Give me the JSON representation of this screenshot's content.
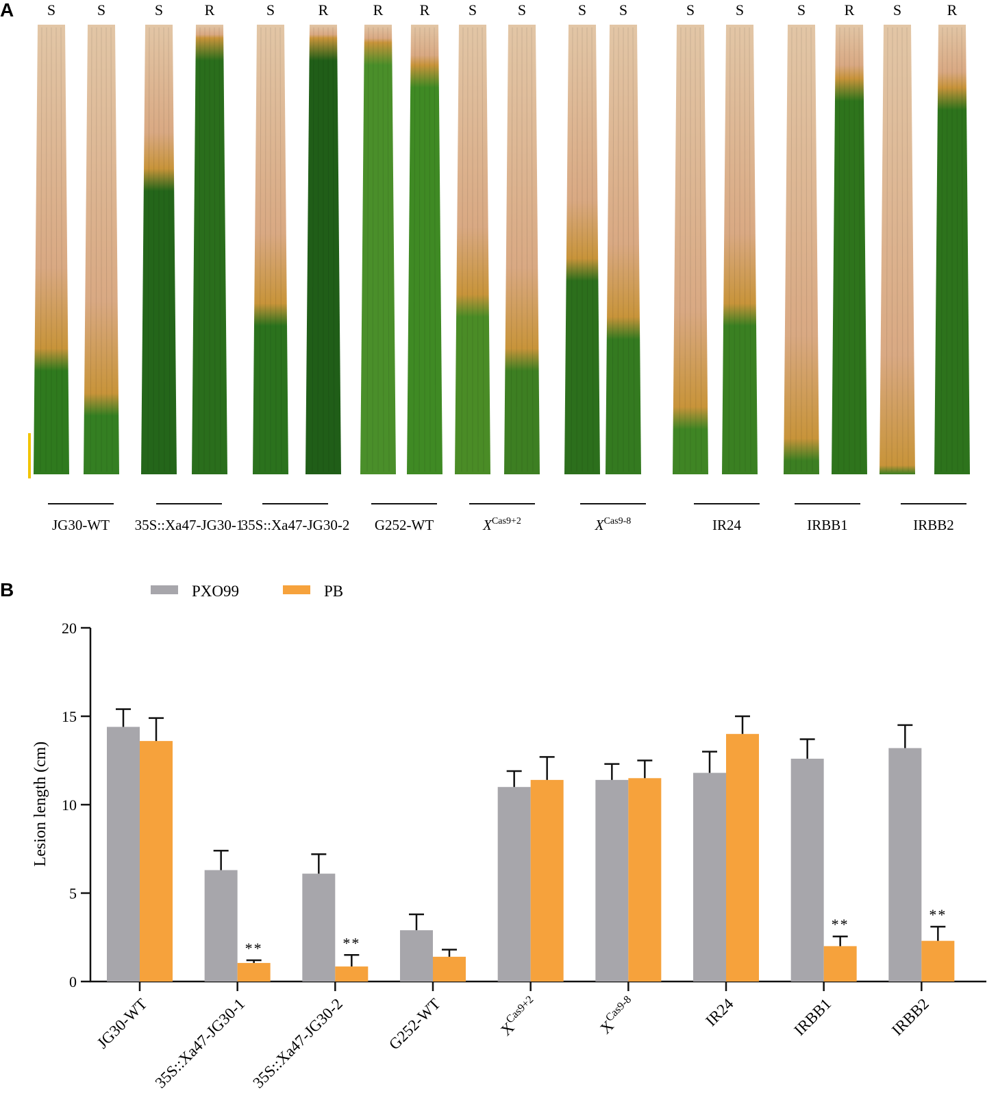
{
  "panel_a": {
    "label": "A",
    "scale_bar_color": "#f2c400",
    "leaves": [
      {
        "mark": "S",
        "lesion": 0.72,
        "green": "#2f7a1e"
      },
      {
        "mark": "S",
        "lesion": 0.82,
        "green": "#347f22"
      },
      {
        "mark": "S",
        "lesion": 0.32,
        "green": "#24661a"
      },
      {
        "mark": "R",
        "lesion": 0.03,
        "green": "#2a6e1c"
      },
      {
        "mark": "S",
        "lesion": 0.62,
        "green": "#2b721d"
      },
      {
        "mark": "R",
        "lesion": 0.03,
        "green": "#205e18"
      },
      {
        "mark": "R",
        "lesion": 0.04,
        "green": "#4a8f2a"
      },
      {
        "mark": "R",
        "lesion": 0.09,
        "green": "#3f8a24"
      },
      {
        "mark": "S",
        "lesion": 0.6,
        "green": "#4a8c26"
      },
      {
        "mark": "S",
        "lesion": 0.72,
        "green": "#3d7f22"
      },
      {
        "mark": "S",
        "lesion": 0.52,
        "green": "#2c6f1c"
      },
      {
        "mark": "S",
        "lesion": 0.65,
        "green": "#347a20"
      },
      {
        "mark": "S",
        "lesion": 0.85,
        "green": "#3f8524"
      },
      {
        "mark": "S",
        "lesion": 0.62,
        "green": "#3a8022"
      },
      {
        "mark": "S",
        "lesion": 0.92,
        "green": "#3c7f22"
      },
      {
        "mark": "R",
        "lesion": 0.12,
        "green": "#2e741c"
      },
      {
        "mark": "S",
        "lesion": 0.98,
        "green": "#3a7e21"
      },
      {
        "mark": "R",
        "lesion": 0.14,
        "green": "#2d731c"
      }
    ],
    "genotype_labels": [
      {
        "pre": "JG30-WT",
        "sup": ""
      },
      {
        "pre": "35S::Xa47-JG30-1",
        "sup": ""
      },
      {
        "pre": "35S::Xa47-JG30-2",
        "sup": ""
      },
      {
        "pre": "G252-WT",
        "sup": ""
      },
      {
        "pre": "X",
        "sup": "Cas9+2"
      },
      {
        "pre": "X",
        "sup": "Cas9-8"
      },
      {
        "pre": "IR24",
        "sup": ""
      },
      {
        "pre": "IRBB1",
        "sup": ""
      },
      {
        "pre": "IRBB2",
        "sup": ""
      }
    ]
  },
  "panel_b": {
    "label": "B"
  },
  "chart_data": {
    "type": "bar",
    "categories": [
      {
        "pre": "JG30-WT",
        "sup": ""
      },
      {
        "pre": "35S::Xa47-JG30-1",
        "sup": ""
      },
      {
        "pre": "35S::Xa47-JG30-2",
        "sup": ""
      },
      {
        "pre": "G252-WT",
        "sup": ""
      },
      {
        "pre": "X",
        "sup": "Cas9+2"
      },
      {
        "pre": "X",
        "sup": "Cas9-8"
      },
      {
        "pre": "IR24",
        "sup": ""
      },
      {
        "pre": "IRBB1",
        "sup": ""
      },
      {
        "pre": "IRBB2",
        "sup": ""
      }
    ],
    "series": [
      {
        "name": "PXO99",
        "color": "#a7a6ab",
        "values": [
          14.4,
          6.3,
          6.1,
          2.9,
          11.0,
          11.4,
          11.8,
          12.6,
          13.2
        ],
        "errors": [
          1.0,
          1.1,
          1.1,
          0.9,
          0.9,
          0.9,
          1.2,
          1.1,
          1.3
        ]
      },
      {
        "name": "PB",
        "color": "#f6a23c",
        "values": [
          13.6,
          1.05,
          0.85,
          1.4,
          11.4,
          11.5,
          14.0,
          2.0,
          2.3
        ],
        "errors": [
          1.3,
          0.15,
          0.65,
          0.4,
          1.3,
          1.0,
          1.0,
          0.55,
          0.8
        ]
      }
    ],
    "significance": [
      {
        "index": 1,
        "series": "PB",
        "text": "**"
      },
      {
        "index": 2,
        "series": "PB",
        "text": "**"
      },
      {
        "index": 7,
        "series": "PB",
        "text": "**"
      },
      {
        "index": 8,
        "series": "PB",
        "text": "**"
      }
    ],
    "ylabel": "Lesion length (cm)",
    "xlabel": "",
    "ylim": [
      0,
      20
    ],
    "yticks": [
      0,
      5,
      10,
      15,
      20
    ],
    "legend_position": "top-left"
  }
}
